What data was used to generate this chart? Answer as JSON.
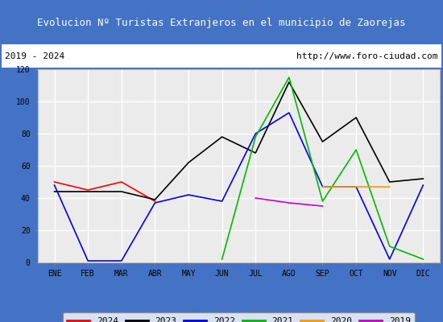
{
  "title": "Evolucion Nº Turistas Extranjeros en el municipio de Zaorejas",
  "subtitle_left": "2019 - 2024",
  "subtitle_right": "http://www.foro-ciudad.com",
  "xlabel_months": [
    "ENE",
    "FEB",
    "MAR",
    "ABR",
    "MAY",
    "JUN",
    "JUL",
    "AGO",
    "SEP",
    "OCT",
    "NOV",
    "DIC"
  ],
  "ylim": [
    0,
    120
  ],
  "yticks": [
    0,
    20,
    40,
    60,
    80,
    100,
    120
  ],
  "series": [
    {
      "year": "2024",
      "color": "#ff0000",
      "values": [
        50,
        45,
        50,
        38,
        null,
        null,
        null,
        null,
        null,
        null,
        null,
        null
      ]
    },
    {
      "year": "2023",
      "color": "#000000",
      "values": [
        44,
        44,
        44,
        39,
        62,
        78,
        68,
        112,
        75,
        90,
        50,
        52
      ]
    },
    {
      "year": "2022",
      "color": "#0000ff",
      "values": [
        48,
        1,
        1,
        37,
        42,
        38,
        80,
        93,
        47,
        47,
        2,
        48
      ]
    },
    {
      "year": "2021",
      "color": "#00bb00",
      "values": [
        null,
        null,
        null,
        null,
        null,
        2,
        78,
        115,
        38,
        70,
        10,
        2
      ]
    },
    {
      "year": "2020",
      "color": "#ff9900",
      "values": [
        null,
        null,
        null,
        null,
        null,
        null,
        null,
        null,
        47,
        47,
        47,
        null
      ]
    },
    {
      "year": "2019",
      "color": "#cc00cc",
      "values": [
        null,
        null,
        null,
        null,
        null,
        null,
        40,
        37,
        35,
        null,
        null,
        null
      ]
    }
  ],
  "title_bg_color": "#4472c4",
  "title_text_color": "#ffffff",
  "plot_bg_color": "#ebebeb",
  "grid_color": "#ffffff",
  "border_color": "#4472c4",
  "subtitle_bg_color": "#ffffff",
  "legend_order": [
    "2024",
    "2023",
    "2022",
    "2021",
    "2020",
    "2019"
  ]
}
